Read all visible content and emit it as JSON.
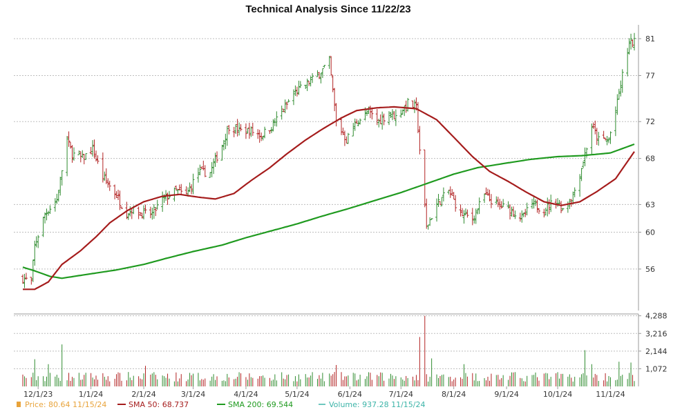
{
  "chart_data": {
    "type": "ohlc",
    "title": "Technical Analysis Since 11/22/23",
    "price_axis": {
      "ylim": [
        51.5,
        82.5
      ],
      "ticks": [
        56,
        60,
        63,
        68,
        72,
        77,
        81
      ]
    },
    "volume_axis": {
      "ylim": [
        0,
        4400
      ],
      "ticks": [
        1072,
        2144,
        3216,
        4288
      ],
      "tick_labels": [
        "1,072",
        "2,144",
        "3,216",
        "4,288"
      ]
    },
    "x_axis": {
      "start": "2023-11-22",
      "end": "2024-11-15",
      "ticks": [
        "2023-12-01",
        "2024-01-01",
        "2024-02-01",
        "2024-03-01",
        "2024-04-01",
        "2024-05-01",
        "2024-06-01",
        "2024-07-01",
        "2024-08-01",
        "2024-09-01",
        "2024-10-01",
        "2024-11-01"
      ],
      "tick_labels": [
        "12/1/23",
        "1/1/24",
        "2/1/24",
        "3/1/24",
        "4/1/24",
        "5/1/24",
        "6/1/24",
        "7/1/24",
        "8/1/24",
        "9/1/24",
        "10/1/24",
        "11/1/24"
      ]
    },
    "price_close_anchors": [
      [
        "2023-11-22",
        55.0
      ],
      [
        "2023-11-27",
        54.6
      ],
      [
        "2023-11-29",
        58.5
      ],
      [
        "2023-12-05",
        62.0
      ],
      [
        "2023-12-12",
        63.5
      ],
      [
        "2023-12-18",
        70.0
      ],
      [
        "2023-12-21",
        68.5
      ],
      [
        "2023-12-27",
        68.0
      ],
      [
        "2024-01-02",
        69.0
      ],
      [
        "2024-01-08",
        66.0
      ],
      [
        "2024-01-16",
        64.0
      ],
      [
        "2024-01-22",
        62.0
      ],
      [
        "2024-01-25",
        62.5
      ],
      [
        "2024-01-31",
        62.0
      ],
      [
        "2024-02-06",
        62.0
      ],
      [
        "2024-02-12",
        63.5
      ],
      [
        "2024-02-20",
        64.5
      ],
      [
        "2024-02-26",
        64.0
      ],
      [
        "2024-03-04",
        66.5
      ],
      [
        "2024-03-11",
        66.5
      ],
      [
        "2024-03-18",
        69.5
      ],
      [
        "2024-03-22",
        71.5
      ],
      [
        "2024-03-28",
        71.0
      ],
      [
        "2024-04-04",
        71.0
      ],
      [
        "2024-04-10",
        70.5
      ],
      [
        "2024-04-16",
        71.5
      ],
      [
        "2024-04-22",
        73.0
      ],
      [
        "2024-04-29",
        75.0
      ],
      [
        "2024-05-06",
        76.0
      ],
      [
        "2024-05-13",
        77.0
      ],
      [
        "2024-05-20",
        78.5
      ],
      [
        "2024-05-24",
        72.0
      ],
      [
        "2024-05-30",
        70.0
      ],
      [
        "2024-06-05",
        72.0
      ],
      [
        "2024-06-12",
        73.0
      ],
      [
        "2024-06-18",
        72.0
      ],
      [
        "2024-06-24",
        73.0
      ],
      [
        "2024-06-28",
        72.5
      ],
      [
        "2024-07-05",
        74.0
      ],
      [
        "2024-07-10",
        73.5
      ],
      [
        "2024-07-12",
        69.0
      ],
      [
        "2024-07-16",
        60.5
      ],
      [
        "2024-07-22",
        63.0
      ],
      [
        "2024-07-29",
        64.5
      ],
      [
        "2024-08-05",
        62.0
      ],
      [
        "2024-08-12",
        61.5
      ],
      [
        "2024-08-19",
        64.0
      ],
      [
        "2024-08-26",
        63.0
      ],
      [
        "2024-09-03",
        62.5
      ],
      [
        "2024-09-10",
        61.5
      ],
      [
        "2024-09-16",
        63.0
      ],
      [
        "2024-09-23",
        62.5
      ],
      [
        "2024-09-30",
        63.5
      ],
      [
        "2024-10-04",
        62.5
      ],
      [
        "2024-10-10",
        64.0
      ],
      [
        "2024-10-15",
        67.0
      ],
      [
        "2024-10-21",
        71.5
      ],
      [
        "2024-10-25",
        70.0
      ],
      [
        "2024-10-31",
        70.0
      ],
      [
        "2024-11-05",
        74.0
      ],
      [
        "2024-11-08",
        77.0
      ],
      [
        "2024-11-12",
        80.5
      ],
      [
        "2024-11-15",
        80.64
      ]
    ],
    "sma50": [
      [
        "2023-11-22",
        53.8
      ],
      [
        "2023-11-29",
        53.8
      ],
      [
        "2023-12-07",
        54.6
      ],
      [
        "2023-12-15",
        56.5
      ],
      [
        "2023-12-26",
        58.0
      ],
      [
        "2024-01-04",
        59.5
      ],
      [
        "2024-01-12",
        61.0
      ],
      [
        "2024-01-22",
        62.3
      ],
      [
        "2024-02-01",
        63.3
      ],
      [
        "2024-02-12",
        63.9
      ],
      [
        "2024-02-22",
        64.1
      ],
      [
        "2024-03-04",
        63.8
      ],
      [
        "2024-03-14",
        63.6
      ],
      [
        "2024-03-25",
        64.2
      ],
      [
        "2024-04-04",
        65.6
      ],
      [
        "2024-04-15",
        67.0
      ],
      [
        "2024-04-25",
        68.5
      ],
      [
        "2024-05-06",
        70.0
      ],
      [
        "2024-05-16",
        71.2
      ],
      [
        "2024-05-27",
        72.4
      ],
      [
        "2024-06-05",
        73.2
      ],
      [
        "2024-06-17",
        73.5
      ],
      [
        "2024-06-27",
        73.6
      ],
      [
        "2024-07-10",
        73.4
      ],
      [
        "2024-07-22",
        72.2
      ],
      [
        "2024-08-01",
        70.3
      ],
      [
        "2024-08-12",
        68.2
      ],
      [
        "2024-08-22",
        66.6
      ],
      [
        "2024-09-03",
        65.4
      ],
      [
        "2024-09-12",
        64.4
      ],
      [
        "2024-09-23",
        63.3
      ],
      [
        "2024-10-03",
        62.9
      ],
      [
        "2024-10-14",
        63.3
      ],
      [
        "2024-10-24",
        64.4
      ],
      [
        "2024-11-04",
        65.8
      ],
      [
        "2024-11-15",
        68.737
      ]
    ],
    "sma200": [
      [
        "2023-11-22",
        56.2
      ],
      [
        "2023-11-29",
        55.8
      ],
      [
        "2023-12-08",
        55.2
      ],
      [
        "2023-12-15",
        55.0
      ],
      [
        "2023-12-29",
        55.4
      ],
      [
        "2024-01-16",
        55.9
      ],
      [
        "2024-02-01",
        56.5
      ],
      [
        "2024-02-15",
        57.2
      ],
      [
        "2024-03-01",
        57.9
      ],
      [
        "2024-03-18",
        58.6
      ],
      [
        "2024-04-01",
        59.4
      ],
      [
        "2024-04-15",
        60.1
      ],
      [
        "2024-05-01",
        60.9
      ],
      [
        "2024-05-15",
        61.7
      ],
      [
        "2024-06-01",
        62.6
      ],
      [
        "2024-06-15",
        63.4
      ],
      [
        "2024-07-01",
        64.3
      ],
      [
        "2024-07-15",
        65.2
      ],
      [
        "2024-08-01",
        66.3
      ],
      [
        "2024-08-15",
        67.0
      ],
      [
        "2024-09-01",
        67.5
      ],
      [
        "2024-09-15",
        67.9
      ],
      [
        "2024-10-01",
        68.2
      ],
      [
        "2024-10-15",
        68.3
      ],
      [
        "2024-11-01",
        68.6
      ],
      [
        "2024-11-15",
        69.544
      ]
    ],
    "volume_spikes": [
      [
        "2023-11-29",
        1650
      ],
      [
        "2023-12-07",
        1350
      ],
      [
        "2023-12-15",
        2550
      ],
      [
        "2024-02-02",
        1250
      ],
      [
        "2024-05-24",
        1300
      ],
      [
        "2024-07-12",
        3000
      ],
      [
        "2024-07-15",
        4288
      ],
      [
        "2024-07-19",
        1700
      ],
      [
        "2024-08-07",
        1350
      ],
      [
        "2024-10-17",
        2200
      ],
      [
        "2024-10-21",
        1350
      ],
      [
        "2024-11-06",
        1500
      ],
      [
        "2024-11-13",
        1450
      ]
    ],
    "volume_base": 650
  },
  "legend": {
    "price": "Price: 80.64  11/15/24",
    "sma50": "SMA 50: 68.737",
    "sma200": "SMA 200: 69.544",
    "volume": "Volume: 937.28  11/15/24"
  },
  "colors": {
    "up": "#2e8b2e",
    "down": "#b22222",
    "sma50": "#a51c1c",
    "sma200": "#1f9a1f",
    "price_legend": "#e8a33a",
    "volume_legend": "#3cb4a8",
    "grid": "#bdbdbd"
  }
}
